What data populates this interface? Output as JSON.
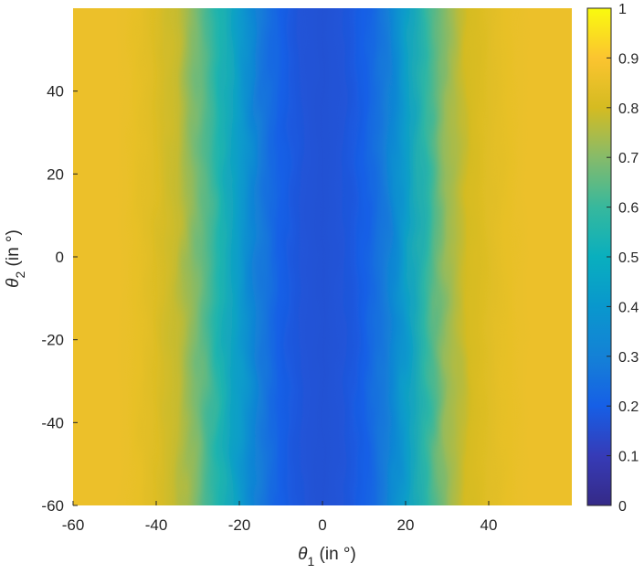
{
  "chart_data": {
    "type": "heatmap",
    "title": "",
    "xlabel": {
      "symbol": "θ",
      "subscript": "1",
      "unit": " (in °)"
    },
    "ylabel": {
      "symbol": "θ",
      "subscript": "2",
      "unit": " (in °)"
    },
    "xlim": [
      -60,
      60
    ],
    "ylim": [
      -60,
      60
    ],
    "x_ticks": [
      -60,
      -40,
      -20,
      0,
      20,
      40
    ],
    "x_tick_labels": [
      "-60",
      "-40",
      "-20",
      "0",
      "20",
      "40"
    ],
    "y_ticks": [
      -60,
      -40,
      -20,
      0,
      20,
      40
    ],
    "y_tick_labels": [
      "-60",
      "-40",
      "-20",
      "0",
      "20",
      "40"
    ],
    "colormap": "parula",
    "colorbar": {
      "range": [
        0,
        1
      ],
      "ticks": [
        0,
        0.1,
        0.2,
        0.3,
        0.4,
        0.5,
        0.6,
        0.7,
        0.8,
        0.9,
        1
      ],
      "tick_labels": [
        "0",
        "0.1",
        "0.2",
        "0.3",
        "0.4",
        "0.5",
        "0.6",
        "0.7",
        "0.8",
        "0.9",
        "1"
      ],
      "placement": "right"
    },
    "profile_description": "Value varies mainly with θ1, nearly constant along θ2",
    "profile_theta1": [
      -60,
      -55,
      -50,
      -45,
      -40,
      -35,
      -30,
      -25,
      -20,
      -15,
      -10,
      -5,
      0,
      5,
      10,
      15,
      20,
      25,
      30,
      35,
      40,
      45,
      50,
      55,
      60
    ],
    "profile_values": [
      0.86,
      0.86,
      0.86,
      0.85,
      0.82,
      0.78,
      0.68,
      0.55,
      0.42,
      0.28,
      0.2,
      0.17,
      0.16,
      0.17,
      0.2,
      0.28,
      0.42,
      0.58,
      0.72,
      0.8,
      0.83,
      0.85,
      0.86,
      0.86,
      0.86
    ],
    "grid": false
  }
}
